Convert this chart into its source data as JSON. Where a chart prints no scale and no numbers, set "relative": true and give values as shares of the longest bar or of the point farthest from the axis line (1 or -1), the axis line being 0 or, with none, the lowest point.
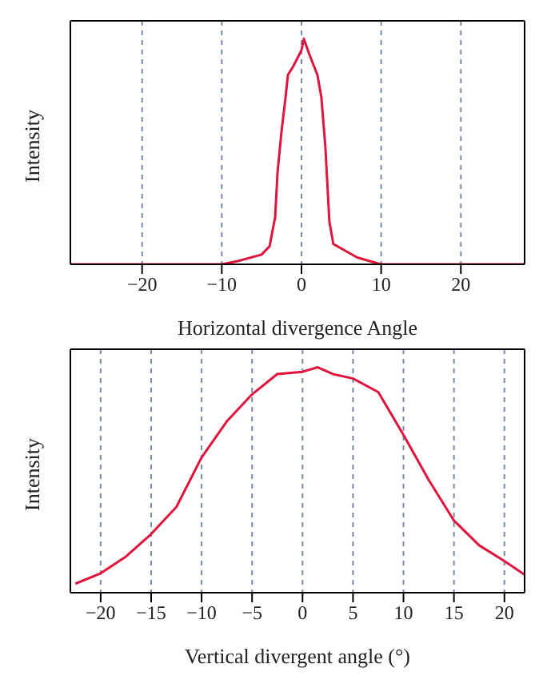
{
  "chart_data": [
    {
      "type": "line",
      "xlabel": "Horizontal divergence Angle",
      "ylabel": "Intensity",
      "relative": true,
      "tick_labels": "x",
      "grid": "x",
      "xlim": [
        -29,
        28
      ],
      "xticks": [
        -20,
        -10,
        0,
        10,
        20
      ],
      "series": [
        {
          "color": "#e0143c",
          "x": [
            -29,
            -10,
            -8,
            -5,
            -4,
            -3.3,
            -3,
            -2.5,
            -2,
            -1.7,
            -1,
            0,
            0.3,
            1,
            2,
            2.5,
            3,
            3.5,
            4,
            5,
            7,
            9,
            10,
            28
          ],
          "values": [
            0,
            0,
            0.014,
            0.043,
            0.08,
            0.21,
            0.41,
            0.59,
            0.74,
            0.84,
            0.88,
            0.95,
            1,
            0.93,
            0.84,
            0.74,
            0.52,
            0.19,
            0.09,
            0.07,
            0.03,
            0.01,
            0,
            0
          ]
        }
      ]
    },
    {
      "type": "line",
      "xlabel": "Vertical divergent angle (°)",
      "ylabel": "Intensity",
      "relative": true,
      "tick_labels": "x",
      "grid": "x",
      "xlim": [
        -23,
        22
      ],
      "xticks": [
        -20,
        -15,
        -10,
        -5,
        0,
        5,
        10,
        15,
        20
      ],
      "series": [
        {
          "color": "#e0143c",
          "x": [
            -22.5,
            -20,
            -17.5,
            -15,
            -12.5,
            -10,
            -7.5,
            -5,
            -2.5,
            0,
            1.5,
            3,
            5,
            7.5,
            10,
            12.5,
            15,
            17.5,
            20,
            22
          ],
          "values": [
            0.04,
            0.086,
            0.16,
            0.26,
            0.38,
            0.6,
            0.76,
            0.88,
            0.97,
            0.98,
            1,
            0.97,
            0.95,
            0.89,
            0.7,
            0.5,
            0.32,
            0.21,
            0.14,
            0.08
          ]
        }
      ]
    }
  ]
}
